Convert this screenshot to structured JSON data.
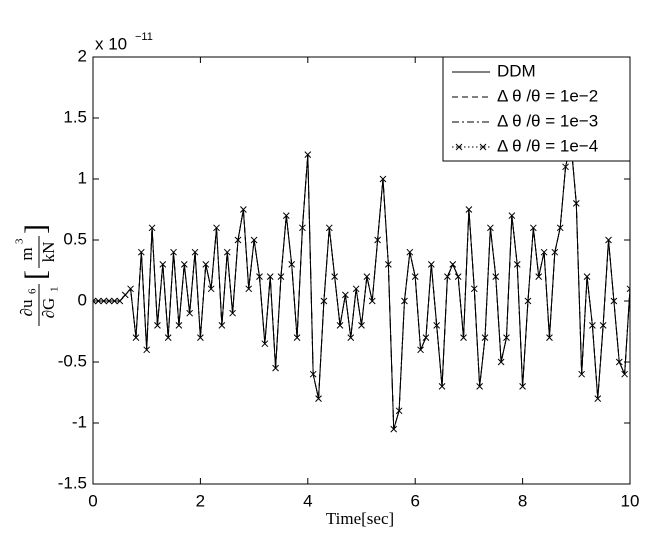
{
  "chart_data": {
    "type": "line",
    "y_exponent": {
      "base": "x 10",
      "power": "−11"
    },
    "y_label": {
      "numerator": "∂u",
      "numerator_sub": "6",
      "denominator": "∂G",
      "denominator_sub": "1",
      "unit_numerator": "m",
      "unit_power": "3",
      "unit_denominator": "kN"
    },
    "x_label": "Time[sec]",
    "xlim": [
      0,
      10
    ],
    "xticks": [
      0,
      2,
      4,
      6,
      8,
      10
    ],
    "ylim": [
      -1.5,
      2
    ],
    "yticks": [
      -1.5,
      -1,
      -0.5,
      0,
      0.5,
      1,
      1.5,
      2
    ],
    "legend": "upper right",
    "x": [
      0,
      0.1,
      0.2,
      0.3,
      0.4,
      0.5,
      0.6,
      0.7,
      0.8,
      0.9,
      1,
      1.1,
      1.2,
      1.3,
      1.4,
      1.5,
      1.6,
      1.7,
      1.8,
      1.9,
      2,
      2.1,
      2.2,
      2.3,
      2.4,
      2.5,
      2.6,
      2.7,
      2.8,
      2.9,
      3,
      3.1,
      3.2,
      3.3,
      3.4,
      3.5,
      3.6,
      3.7,
      3.8,
      3.9,
      4,
      4.1,
      4.2,
      4.3,
      4.4,
      4.5,
      4.6,
      4.7,
      4.8,
      4.9,
      5,
      5.1,
      5.2,
      5.3,
      5.4,
      5.5,
      5.6,
      5.7,
      5.8,
      5.9,
      6,
      6.1,
      6.2,
      6.3,
      6.4,
      6.5,
      6.6,
      6.7,
      6.8,
      6.9,
      7,
      7.1,
      7.2,
      7.3,
      7.4,
      7.5,
      7.6,
      7.7,
      7.8,
      7.9,
      8,
      8.1,
      8.2,
      8.3,
      8.4,
      8.5,
      8.6,
      8.7,
      8.8,
      8.9,
      9,
      9.1,
      9.2,
      9.3,
      9.4,
      9.5,
      9.6,
      9.7,
      9.8,
      9.9,
      10
    ],
    "series": [
      {
        "name": "DDM",
        "color": "#000000",
        "linestyle": "solid",
        "marker": "none",
        "values": [
          0,
          0,
          0,
          0,
          0,
          0,
          0.05,
          0.1,
          -0.3,
          0.4,
          -0.4,
          0.6,
          -0.2,
          0.3,
          -0.3,
          0.4,
          -0.2,
          0.3,
          -0.1,
          0.4,
          -0.3,
          0.3,
          0.1,
          0.6,
          -0.2,
          0.4,
          -0.1,
          0.5,
          0.75,
          0.1,
          0.5,
          0.2,
          -0.35,
          0.2,
          -0.55,
          0.2,
          0.7,
          0.3,
          -0.3,
          0.6,
          1.2,
          -0.6,
          -0.8,
          0,
          0.6,
          0.2,
          -0.2,
          0.05,
          -0.3,
          0.1,
          -0.2,
          0.2,
          0,
          0.5,
          1,
          0.3,
          -1.05,
          -0.9,
          0,
          0.4,
          0.2,
          -0.4,
          -0.3,
          0.3,
          -0.2,
          -0.7,
          0.2,
          0.3,
          0.2,
          -0.3,
          0.75,
          0.1,
          -0.7,
          -0.3,
          0.6,
          0.2,
          -0.5,
          -0.3,
          0.7,
          0.3,
          -0.7,
          0,
          0.6,
          0.2,
          0.4,
          -0.3,
          0.4,
          0.6,
          1.1,
          1.3,
          0.8,
          -0.6,
          0.2,
          -0.2,
          -0.8,
          -0.2,
          0.5,
          0,
          -0.5,
          -0.6,
          0.1
        ]
      },
      {
        "name": "Δ θ /θ  = 1e−2",
        "color": "#000000",
        "linestyle": "dashed",
        "marker": "none",
        "values": [
          0,
          0,
          0,
          0,
          0,
          0,
          0.05,
          0.1,
          -0.3,
          0.4,
          -0.4,
          0.6,
          -0.2,
          0.3,
          -0.3,
          0.4,
          -0.2,
          0.3,
          -0.1,
          0.4,
          -0.3,
          0.3,
          0.1,
          0.6,
          -0.2,
          0.4,
          -0.1,
          0.5,
          0.75,
          0.1,
          0.5,
          0.2,
          -0.35,
          0.2,
          -0.55,
          0.2,
          0.7,
          0.3,
          -0.3,
          0.6,
          1.2,
          -0.6,
          -0.8,
          0,
          0.6,
          0.2,
          -0.2,
          0.05,
          -0.3,
          0.1,
          -0.2,
          0.2,
          0,
          0.5,
          1,
          0.3,
          -1.05,
          -0.9,
          0,
          0.4,
          0.2,
          -0.4,
          -0.3,
          0.3,
          -0.2,
          -0.7,
          0.2,
          0.3,
          0.2,
          -0.3,
          0.75,
          0.1,
          -0.7,
          -0.3,
          0.6,
          0.2,
          -0.5,
          -0.3,
          0.7,
          0.3,
          -0.7,
          0,
          0.6,
          0.2,
          0.4,
          -0.3,
          0.4,
          0.6,
          1.1,
          1.3,
          0.8,
          -0.6,
          0.2,
          -0.2,
          -0.8,
          -0.2,
          0.5,
          0,
          -0.5,
          -0.6,
          0.1
        ]
      },
      {
        "name": "Δ θ /θ  = 1e−3",
        "color": "#000000",
        "linestyle": "dashdot",
        "marker": "none",
        "values": [
          0,
          0,
          0,
          0,
          0,
          0,
          0.05,
          0.1,
          -0.3,
          0.4,
          -0.4,
          0.6,
          -0.2,
          0.3,
          -0.3,
          0.4,
          -0.2,
          0.3,
          -0.1,
          0.4,
          -0.3,
          0.3,
          0.1,
          0.6,
          -0.2,
          0.4,
          -0.1,
          0.5,
          0.75,
          0.1,
          0.5,
          0.2,
          -0.35,
          0.2,
          -0.55,
          0.2,
          0.7,
          0.3,
          -0.3,
          0.6,
          1.2,
          -0.6,
          -0.8,
          0,
          0.6,
          0.2,
          -0.2,
          0.05,
          -0.3,
          0.1,
          -0.2,
          0.2,
          0,
          0.5,
          1,
          0.3,
          -1.05,
          -0.9,
          0,
          0.4,
          0.2,
          -0.4,
          -0.3,
          0.3,
          -0.2,
          -0.7,
          0.2,
          0.3,
          0.2,
          -0.3,
          0.75,
          0.1,
          -0.7,
          -0.3,
          0.6,
          0.2,
          -0.5,
          -0.3,
          0.7,
          0.3,
          -0.7,
          0,
          0.6,
          0.2,
          0.4,
          -0.3,
          0.4,
          0.6,
          1.1,
          1.3,
          0.8,
          -0.6,
          0.2,
          -0.2,
          -0.8,
          -0.2,
          0.5,
          0,
          -0.5,
          -0.6,
          0.1
        ]
      },
      {
        "name": "Δ θ /θ  = 1e−4",
        "color": "#000000",
        "linestyle": "dotted",
        "marker": "x",
        "values": [
          0,
          0,
          0,
          0,
          0,
          0,
          0.05,
          0.1,
          -0.3,
          0.4,
          -0.4,
          0.6,
          -0.2,
          0.3,
          -0.3,
          0.4,
          -0.2,
          0.3,
          -0.1,
          0.4,
          -0.3,
          0.3,
          0.1,
          0.6,
          -0.2,
          0.4,
          -0.1,
          0.5,
          0.75,
          0.1,
          0.5,
          0.2,
          -0.35,
          0.2,
          -0.55,
          0.2,
          0.7,
          0.3,
          -0.3,
          0.6,
          1.2,
          -0.6,
          -0.8,
          0,
          0.6,
          0.2,
          -0.2,
          0.05,
          -0.3,
          0.1,
          -0.2,
          0.2,
          0,
          0.5,
          1,
          0.3,
          -1.05,
          -0.9,
          0,
          0.4,
          0.2,
          -0.4,
          -0.3,
          0.3,
          -0.2,
          -0.7,
          0.2,
          0.3,
          0.2,
          -0.3,
          0.75,
          0.1,
          -0.7,
          -0.3,
          0.6,
          0.2,
          -0.5,
          -0.3,
          0.7,
          0.3,
          -0.7,
          0,
          0.6,
          0.2,
          0.4,
          -0.3,
          0.4,
          0.6,
          1.1,
          1.3,
          0.8,
          -0.6,
          0.2,
          -0.2,
          -0.8,
          -0.2,
          0.5,
          0,
          -0.5,
          -0.6,
          0.1
        ]
      }
    ]
  }
}
